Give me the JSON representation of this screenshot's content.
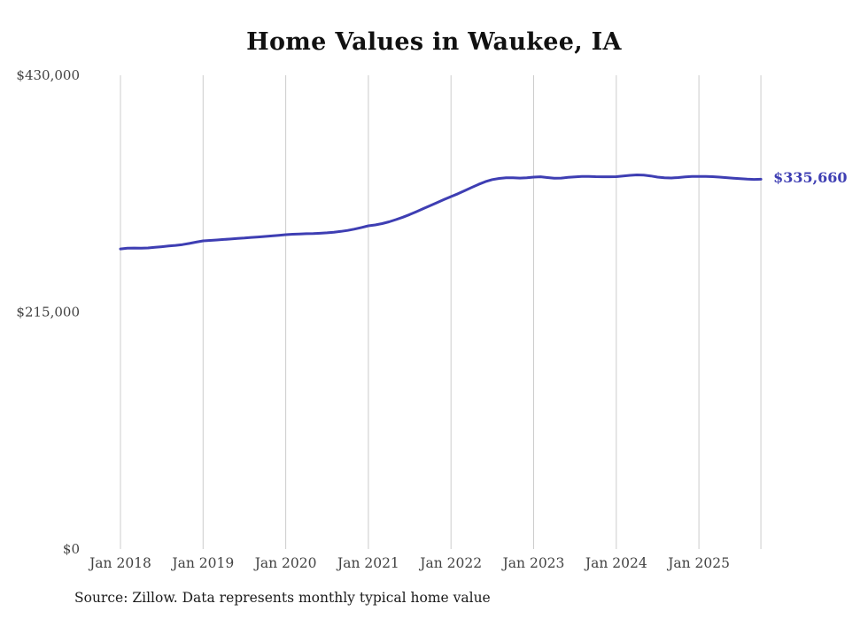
{
  "page": {
    "title": "Home Values in Waukee, IA",
    "source_note": "Source: Zillow. Data represents monthly typical home value",
    "end_label": "$335,660"
  },
  "colors": {
    "line": "#3e3eb3",
    "grid": "#cccccc",
    "axis_text": "#434343",
    "title_text": "#111111",
    "source_text": "#1c1c1c",
    "end_label_text": "#3e3eb3",
    "background": "#ffffff"
  },
  "chart_data": {
    "type": "line",
    "title": "Home Values in Waukee, IA",
    "xlabel": "",
    "ylabel": "",
    "ylim": [
      0,
      430000
    ],
    "grid": "vertical-only",
    "legend": "none",
    "end_value": 335660,
    "end_value_label": "$335,660",
    "y_ticks": [
      {
        "label": "$0",
        "value": 0
      },
      {
        "label": "$215,000",
        "value": 215000
      },
      {
        "label": "$430,000",
        "value": 430000
      }
    ],
    "x_ticks": [
      {
        "label": "Jan 2018",
        "month": "2018-01"
      },
      {
        "label": "Jan 2019",
        "month": "2019-01"
      },
      {
        "label": "Jan 2020",
        "month": "2020-01"
      },
      {
        "label": "Jan 2021",
        "month": "2021-01"
      },
      {
        "label": "Jan 2022",
        "month": "2022-01"
      },
      {
        "label": "Jan 2023",
        "month": "2023-01"
      },
      {
        "label": "Jan 2024",
        "month": "2024-01"
      },
      {
        "label": "Jan 2025",
        "month": "2025-01"
      }
    ],
    "series": [
      {
        "name": "Typical home value",
        "x": [
          "2018-01",
          "2018-02",
          "2018-03",
          "2018-04",
          "2018-05",
          "2018-06",
          "2018-07",
          "2018-08",
          "2018-09",
          "2018-10",
          "2018-11",
          "2018-12",
          "2019-01",
          "2019-02",
          "2019-03",
          "2019-04",
          "2019-05",
          "2019-06",
          "2019-07",
          "2019-08",
          "2019-09",
          "2019-10",
          "2019-11",
          "2019-12",
          "2020-01",
          "2020-02",
          "2020-03",
          "2020-04",
          "2020-05",
          "2020-06",
          "2020-07",
          "2020-08",
          "2020-09",
          "2020-10",
          "2020-11",
          "2020-12",
          "2021-01",
          "2021-02",
          "2021-03",
          "2021-04",
          "2021-05",
          "2021-06",
          "2021-07",
          "2021-08",
          "2021-09",
          "2021-10",
          "2021-11",
          "2021-12",
          "2022-01",
          "2022-02",
          "2022-03",
          "2022-04",
          "2022-05",
          "2022-06",
          "2022-07",
          "2022-08",
          "2022-09",
          "2022-10",
          "2022-11",
          "2022-12",
          "2023-01",
          "2023-02",
          "2023-03",
          "2023-04",
          "2023-05",
          "2023-06",
          "2023-07",
          "2023-08",
          "2023-09",
          "2023-10",
          "2023-11",
          "2023-12",
          "2024-01",
          "2024-02",
          "2024-03",
          "2024-04",
          "2024-05",
          "2024-06",
          "2024-07",
          "2024-08",
          "2024-09",
          "2024-10",
          "2024-11",
          "2024-12",
          "2025-01",
          "2025-02",
          "2025-03",
          "2025-04",
          "2025-05",
          "2025-06",
          "2025-07",
          "2025-08",
          "2025-09",
          "2025-10"
        ],
        "values": [
          272400,
          273000,
          273200,
          273000,
          273300,
          273800,
          274400,
          275000,
          275600,
          276300,
          277400,
          278600,
          279700,
          280100,
          280500,
          281000,
          281400,
          281900,
          282300,
          282800,
          283200,
          283700,
          284200,
          284800,
          285300,
          285700,
          286000,
          286200,
          286300,
          286600,
          287000,
          287600,
          288300,
          289200,
          290400,
          291800,
          293400,
          294200,
          295400,
          297000,
          299000,
          301200,
          303600,
          306200,
          309000,
          311800,
          314500,
          317200,
          319900,
          322500,
          325300,
          328200,
          331000,
          333500,
          335300,
          336400,
          336900,
          337000,
          336700,
          336900,
          337600,
          337900,
          337200,
          336500,
          336700,
          337300,
          337800,
          338100,
          338200,
          338000,
          337900,
          337900,
          338000,
          338500,
          339200,
          339600,
          339400,
          338600,
          337600,
          336900,
          336800,
          337200,
          337800,
          338100,
          338200,
          338200,
          338000,
          337600,
          337100,
          336600,
          336100,
          335700,
          335500,
          335660
        ]
      }
    ]
  }
}
